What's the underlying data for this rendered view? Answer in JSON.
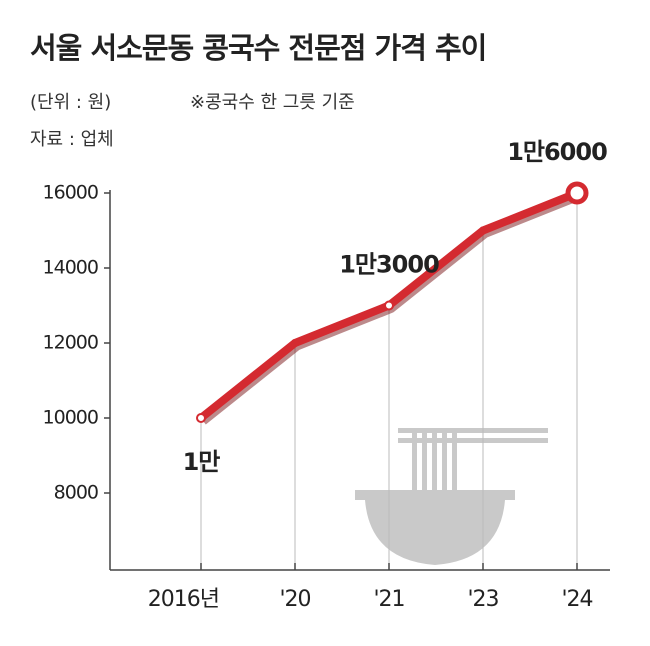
{
  "chart_data": {
    "type": "line",
    "title": "서울 서소문동 콩국수 전문점 가격 추이",
    "subtitle": "(단위 : 원)",
    "note": "※콩국수 한 그릇 기준",
    "source": "자료 : 업체",
    "categories": [
      "2016년",
      "'20",
      "'21",
      "'23",
      "'24"
    ],
    "values": [
      10000,
      12000,
      13000,
      15000,
      16000
    ],
    "value_labels": [
      "1만",
      null,
      "1만3000",
      null,
      "1만6000"
    ],
    "color": "#d42a30",
    "ylim": [
      6000,
      16000
    ],
    "yticks": [
      8000,
      10000,
      12000,
      14000,
      16000
    ]
  }
}
